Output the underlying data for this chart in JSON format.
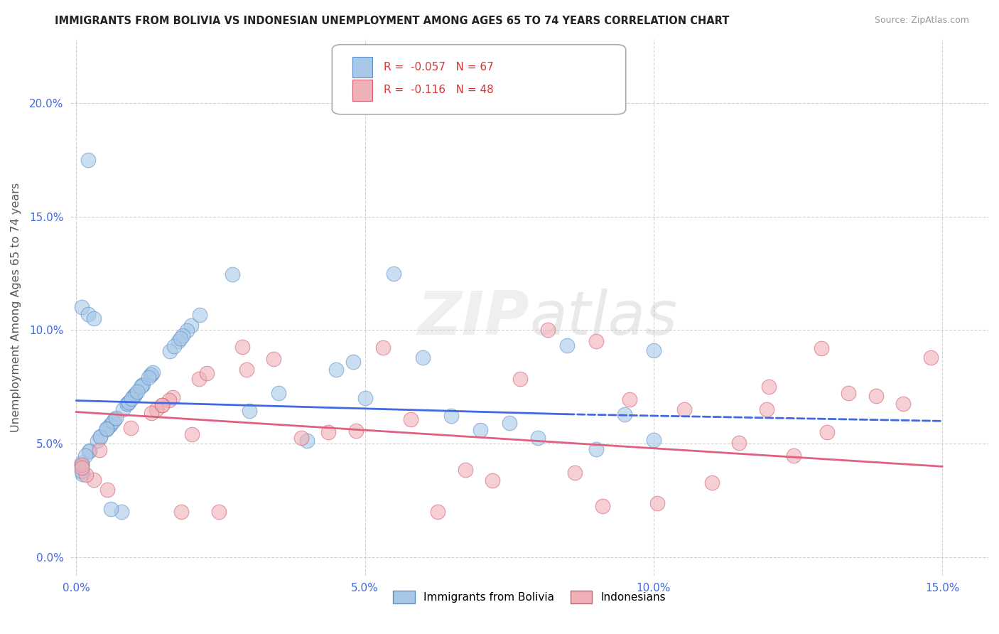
{
  "title": "IMMIGRANTS FROM BOLIVIA VS INDONESIAN UNEMPLOYMENT AMONG AGES 65 TO 74 YEARS CORRELATION CHART",
  "source": "Source: ZipAtlas.com",
  "ylabel": "Unemployment Among Ages 65 to 74 years",
  "legend_label1": "Immigrants from Bolivia",
  "legend_label2": "Indonesians",
  "r1": "-0.057",
  "n1": "67",
  "r2": "-0.116",
  "n2": "48",
  "color1": "#a8c8e8",
  "color2": "#f0b0b8",
  "edge_color1": "#6090c8",
  "edge_color2": "#d06070",
  "line_color1": "#4169e1",
  "line_color2": "#e06080",
  "xlim": [
    -0.001,
    0.158
  ],
  "ylim": [
    -0.008,
    0.228
  ],
  "xticks": [
    0.0,
    0.05,
    0.1,
    0.15
  ],
  "xtick_labels": [
    "0.0%",
    "5.0%",
    "10.0%",
    "15.0%"
  ],
  "yticks": [
    0.0,
    0.05,
    0.1,
    0.15,
    0.2
  ],
  "ytick_labels": [
    "0.0%",
    "5.0%",
    "10.0%",
    "15.0%",
    "20.0%"
  ],
  "background_color": "#ffffff",
  "grid_color": "#cccccc",
  "watermark": "ZIPatlas"
}
